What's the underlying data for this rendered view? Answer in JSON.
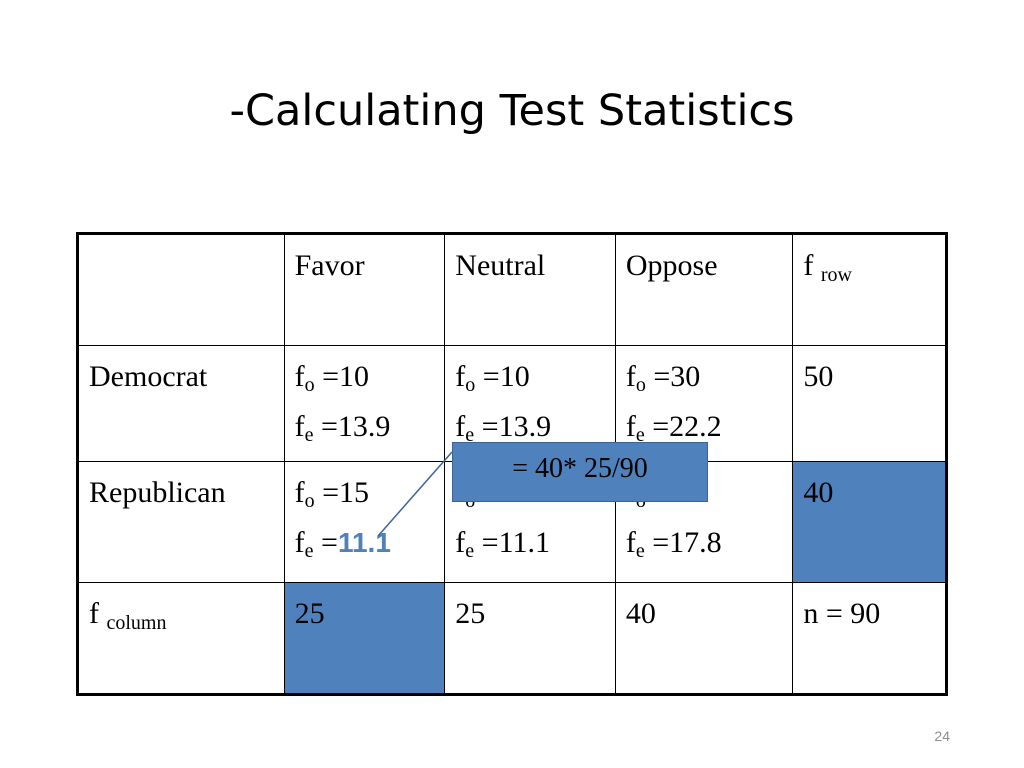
{
  "title": "-Calculating Test Statistics",
  "table": {
    "header": {
      "blank": "",
      "favor": "Favor",
      "neutral": "Neutral",
      "oppose": "Oppose",
      "frow_f": "f",
      "frow_sub": "row"
    },
    "rows": [
      {
        "label": "Democrat",
        "cells": [
          {
            "fo": "=10",
            "fe": "=13.9"
          },
          {
            "fo": "=10",
            "fe": "=13.9"
          },
          {
            "fo": "=30",
            "fe": "=22.2"
          }
        ],
        "total": "50"
      },
      {
        "label": "Republican",
        "cells": [
          {
            "fo": "=15",
            "fe_prefix": "=",
            "fe_value": "11.1"
          },
          {
            "fo": "",
            "fe": "=11.1"
          },
          {
            "fo": "",
            "fe": "=17.8"
          }
        ],
        "total": "40"
      }
    ],
    "footer": {
      "label_f": "f",
      "label_sub": "column",
      "values": [
        "25",
        "25",
        "40"
      ],
      "total": "n = 90"
    },
    "f_letter": "f",
    "o_sub": "o",
    "e_sub": "e"
  },
  "callout": "= 40* 25/90",
  "page_number": "24",
  "colors": {
    "highlight": "#4f81bd"
  }
}
